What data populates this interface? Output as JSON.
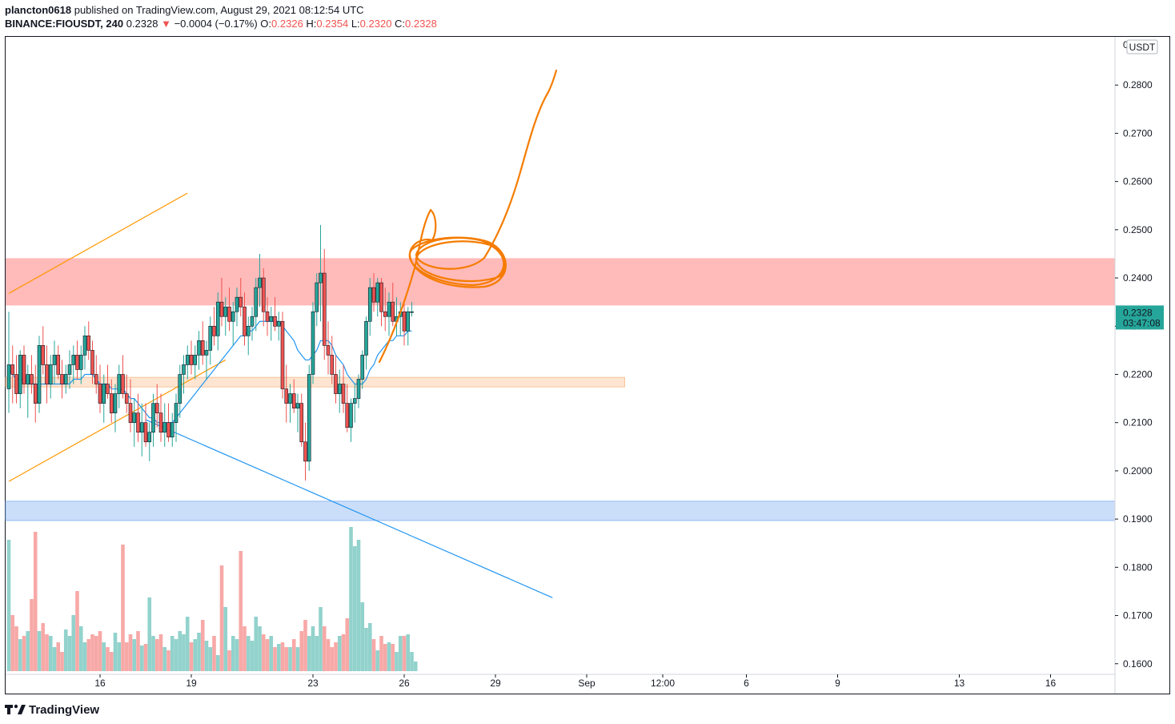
{
  "header": {
    "author": "plancton0618",
    "published": "published on TradingView.com, August 29, 2021 08:12:54 UTC",
    "symbol": "BINANCE:FIOUSDT, 240",
    "last": "0.2328",
    "change_arrow": "▼",
    "change": "−0.0004 (−0.17%)",
    "o_label": "O:",
    "o": "0.2326",
    "h_label": "H:",
    "h": "0.2354",
    "l_label": "L:",
    "l": "0.2320",
    "c_label": "C:",
    "c": "0.2328"
  },
  "footer": {
    "logo_text": "TradingView",
    "logo_icon": "tradingview-logo-icon"
  },
  "colors": {
    "up": "#26a69a",
    "down": "#ef5350",
    "sma": "#2196f3",
    "annotation": "#f57c00",
    "channel": "#ff9800",
    "resistance_zone": "#ff9c9c",
    "support_zone": "#fbd3b2",
    "blue_zone": "#a9c8f5"
  },
  "chart_data": {
    "type": "candlestick",
    "currency_label": "USDT",
    "price_axis": {
      "ticks": [
        "0.2800",
        "0.2700",
        "0.2600",
        "0.2500",
        "0.2400",
        "0.2300",
        "0.2200",
        "0.2100",
        "0.2000",
        "0.1900",
        "0.1800",
        "0.1700",
        "0.1600"
      ],
      "range": [
        0.1578,
        0.29
      ]
    },
    "last_price_label": {
      "price": "0.2328",
      "countdown": "03:47:08"
    },
    "time_axis": {
      "labels": [
        "16",
        "19",
        "23",
        "26",
        "29",
        "Sep",
        "12:00",
        "6",
        "9",
        "13",
        "16"
      ],
      "label_bar_index": [
        24,
        48,
        80,
        104,
        128,
        152,
        172,
        194,
        218,
        250,
        274
      ]
    },
    "candles_ohlc": [
      [
        0.217,
        0.233,
        0.212,
        0.222
      ],
      [
        0.222,
        0.226,
        0.214,
        0.22
      ],
      [
        0.22,
        0.224,
        0.214,
        0.216
      ],
      [
        0.216,
        0.225,
        0.213,
        0.224
      ],
      [
        0.224,
        0.226,
        0.216,
        0.218
      ],
      [
        0.218,
        0.222,
        0.211,
        0.22
      ],
      [
        0.22,
        0.224,
        0.216,
        0.218
      ],
      [
        0.218,
        0.222,
        0.21,
        0.214
      ],
      [
        0.214,
        0.228,
        0.212,
        0.226
      ],
      [
        0.226,
        0.23,
        0.22,
        0.222
      ],
      [
        0.222,
        0.226,
        0.214,
        0.218
      ],
      [
        0.218,
        0.224,
        0.215,
        0.222
      ],
      [
        0.222,
        0.227,
        0.218,
        0.224
      ],
      [
        0.224,
        0.226,
        0.219,
        0.22
      ],
      [
        0.22,
        0.223,
        0.215,
        0.218
      ],
      [
        0.218,
        0.222,
        0.216,
        0.22
      ],
      [
        0.22,
        0.225,
        0.217,
        0.222
      ],
      [
        0.222,
        0.226,
        0.218,
        0.224
      ],
      [
        0.224,
        0.227,
        0.219,
        0.221
      ],
      [
        0.221,
        0.226,
        0.218,
        0.224
      ],
      [
        0.224,
        0.23,
        0.221,
        0.228
      ],
      [
        0.228,
        0.231,
        0.223,
        0.225
      ],
      [
        0.225,
        0.227,
        0.218,
        0.22
      ],
      [
        0.22,
        0.224,
        0.216,
        0.218
      ],
      [
        0.218,
        0.222,
        0.212,
        0.214
      ],
      [
        0.214,
        0.22,
        0.21,
        0.218
      ],
      [
        0.218,
        0.222,
        0.215,
        0.216
      ],
      [
        0.216,
        0.219,
        0.21,
        0.212
      ],
      [
        0.212,
        0.218,
        0.208,
        0.216
      ],
      [
        0.216,
        0.222,
        0.213,
        0.22
      ],
      [
        0.22,
        0.224,
        0.215,
        0.216
      ],
      [
        0.216,
        0.22,
        0.212,
        0.214
      ],
      [
        0.214,
        0.219,
        0.208,
        0.21
      ],
      [
        0.21,
        0.215,
        0.205,
        0.212
      ],
      [
        0.212,
        0.216,
        0.206,
        0.208
      ],
      [
        0.208,
        0.214,
        0.203,
        0.21
      ],
      [
        0.21,
        0.214,
        0.205,
        0.206
      ],
      [
        0.206,
        0.21,
        0.202,
        0.208
      ],
      [
        0.208,
        0.216,
        0.205,
        0.214
      ],
      [
        0.214,
        0.218,
        0.209,
        0.212
      ],
      [
        0.212,
        0.216,
        0.206,
        0.208
      ],
      [
        0.208,
        0.214,
        0.205,
        0.21
      ],
      [
        0.21,
        0.214,
        0.206,
        0.207
      ],
      [
        0.207,
        0.212,
        0.205,
        0.21
      ],
      [
        0.21,
        0.216,
        0.206,
        0.214
      ],
      [
        0.214,
        0.222,
        0.211,
        0.22
      ],
      [
        0.22,
        0.224,
        0.216,
        0.222
      ],
      [
        0.222,
        0.226,
        0.219,
        0.224
      ],
      [
        0.224,
        0.227,
        0.22,
        0.222
      ],
      [
        0.222,
        0.226,
        0.219,
        0.224
      ],
      [
        0.224,
        0.229,
        0.221,
        0.227
      ],
      [
        0.227,
        0.231,
        0.222,
        0.224
      ],
      [
        0.224,
        0.227,
        0.219,
        0.225
      ],
      [
        0.225,
        0.232,
        0.222,
        0.23
      ],
      [
        0.23,
        0.234,
        0.226,
        0.228
      ],
      [
        0.228,
        0.237,
        0.225,
        0.235
      ],
      [
        0.235,
        0.24,
        0.23,
        0.232
      ],
      [
        0.232,
        0.236,
        0.228,
        0.234
      ],
      [
        0.234,
        0.238,
        0.229,
        0.231
      ],
      [
        0.231,
        0.235,
        0.226,
        0.233
      ],
      [
        0.233,
        0.238,
        0.23,
        0.236
      ],
      [
        0.236,
        0.24,
        0.232,
        0.234
      ],
      [
        0.234,
        0.237,
        0.226,
        0.228
      ],
      [
        0.228,
        0.232,
        0.224,
        0.23
      ],
      [
        0.23,
        0.234,
        0.227,
        0.232
      ],
      [
        0.232,
        0.24,
        0.229,
        0.238
      ],
      [
        0.238,
        0.245,
        0.234,
        0.24
      ],
      [
        0.24,
        0.242,
        0.23,
        0.233
      ],
      [
        0.233,
        0.236,
        0.228,
        0.231
      ],
      [
        0.231,
        0.234,
        0.227,
        0.232
      ],
      [
        0.232,
        0.236,
        0.229,
        0.23
      ],
      [
        0.23,
        0.233,
        0.227,
        0.231
      ],
      [
        0.231,
        0.233,
        0.215,
        0.217
      ],
      [
        0.217,
        0.222,
        0.21,
        0.214
      ],
      [
        0.214,
        0.218,
        0.21,
        0.216
      ],
      [
        0.216,
        0.219,
        0.212,
        0.213
      ],
      [
        0.213,
        0.216,
        0.208,
        0.214
      ],
      [
        0.214,
        0.216,
        0.205,
        0.206
      ],
      [
        0.206,
        0.21,
        0.198,
        0.202
      ],
      [
        0.202,
        0.222,
        0.2,
        0.22
      ],
      [
        0.22,
        0.235,
        0.218,
        0.233
      ],
      [
        0.233,
        0.241,
        0.23,
        0.239
      ],
      [
        0.239,
        0.251,
        0.231,
        0.241
      ],
      [
        0.241,
        0.246,
        0.223,
        0.226
      ],
      [
        0.226,
        0.231,
        0.22,
        0.224
      ],
      [
        0.224,
        0.228,
        0.218,
        0.22
      ],
      [
        0.22,
        0.224,
        0.214,
        0.216
      ],
      [
        0.216,
        0.221,
        0.212,
        0.218
      ],
      [
        0.218,
        0.222,
        0.212,
        0.214
      ],
      [
        0.214,
        0.218,
        0.208,
        0.209
      ],
      [
        0.209,
        0.215,
        0.206,
        0.214
      ],
      [
        0.214,
        0.218,
        0.21,
        0.215
      ],
      [
        0.215,
        0.22,
        0.213,
        0.219
      ],
      [
        0.219,
        0.225,
        0.217,
        0.224
      ],
      [
        0.224,
        0.232,
        0.221,
        0.231
      ],
      [
        0.231,
        0.24,
        0.228,
        0.238
      ],
      [
        0.238,
        0.241,
        0.233,
        0.235
      ],
      [
        0.235,
        0.24,
        0.232,
        0.239
      ],
      [
        0.239,
        0.24,
        0.23,
        0.233
      ],
      [
        0.233,
        0.238,
        0.229,
        0.232
      ],
      [
        0.232,
        0.237,
        0.228,
        0.235
      ],
      [
        0.235,
        0.239,
        0.23,
        0.231
      ],
      [
        0.231,
        0.236,
        0.228,
        0.232
      ],
      [
        0.232,
        0.235,
        0.228,
        0.233
      ],
      [
        0.233,
        0.235,
        0.226,
        0.229
      ],
      [
        0.229,
        0.234,
        0.226,
        0.233
      ],
      [
        0.233,
        0.235,
        0.232,
        0.233
      ]
    ],
    "sma": [
      0.221,
      0.22,
      0.219,
      0.219,
      0.219,
      0.218,
      0.218,
      0.218,
      0.218,
      0.218,
      0.218,
      0.218,
      0.218,
      0.218,
      0.218,
      0.218,
      0.218,
      0.219,
      0.219,
      0.219,
      0.22,
      0.22,
      0.22,
      0.219,
      0.218,
      0.218,
      0.218,
      0.217,
      0.217,
      0.217,
      0.217,
      0.216,
      0.215,
      0.215,
      0.214,
      0.213,
      0.212,
      0.211,
      0.211,
      0.21,
      0.21,
      0.21,
      0.21,
      0.21,
      0.211,
      0.212,
      0.213,
      0.214,
      0.215,
      0.216,
      0.217,
      0.218,
      0.219,
      0.22,
      0.221,
      0.222,
      0.223,
      0.224,
      0.225,
      0.226,
      0.227,
      0.228,
      0.228,
      0.229,
      0.229,
      0.23,
      0.231,
      0.231,
      0.231,
      0.231,
      0.231,
      0.231,
      0.23,
      0.229,
      0.228,
      0.227,
      0.225,
      0.224,
      0.223,
      0.223,
      0.224,
      0.225,
      0.227,
      0.227,
      0.227,
      0.226,
      0.224,
      0.223,
      0.222,
      0.22,
      0.219,
      0.218,
      0.218,
      0.218,
      0.219,
      0.221,
      0.222,
      0.224,
      0.225,
      0.226,
      0.227,
      0.227,
      0.228,
      0.228,
      0.228,
      0.229,
      0.229
    ],
    "volume_relative": [
      0.82,
      0.35,
      0.28,
      0.2,
      0.22,
      0.25,
      0.45,
      0.87,
      0.25,
      0.3,
      0.23,
      0.22,
      0.15,
      0.18,
      0.12,
      0.26,
      0.22,
      0.35,
      0.5,
      0.28,
      0.18,
      0.2,
      0.23,
      0.22,
      0.25,
      0.18,
      0.15,
      0.12,
      0.24,
      0.18,
      0.79,
      0.18,
      0.23,
      0.2,
      0.25,
      0.16,
      0.17,
      0.46,
      0.22,
      0.2,
      0.23,
      0.15,
      0.13,
      0.22,
      0.2,
      0.25,
      0.23,
      0.34,
      0.18,
      0.2,
      0.24,
      0.32,
      0.19,
      0.15,
      0.22,
      0.1,
      0.66,
      0.4,
      0.13,
      0.22,
      0.2,
      0.75,
      0.28,
      0.22,
      0.19,
      0.34,
      0.28,
      0.23,
      0.2,
      0.22,
      0.15,
      0.17,
      0.18,
      0.15,
      0.15,
      0.2,
      0.15,
      0.25,
      0.32,
      0.22,
      0.28,
      0.22,
      0.4,
      0.28,
      0.2,
      0.15,
      0.18,
      0.22,
      0.23,
      0.33,
      0.9,
      0.78,
      0.82,
      0.43,
      0.27,
      0.3,
      0.2,
      0.13,
      0.22,
      0.17,
      0.18,
      0.17,
      0.12,
      0.22,
      0.22,
      0.23,
      0.12,
      0.06
    ],
    "zones": [
      {
        "name": "resistance",
        "from": 0.2343,
        "to": 0.2441,
        "x_end": "right-edge"
      },
      {
        "name": "support",
        "from": 0.2174,
        "to": 0.2194,
        "x_end_bar": 162
      },
      {
        "name": "blue-support",
        "from": 0.1897,
        "to": 0.1937,
        "x_end": "right-edge"
      }
    ],
    "trendlines": [
      {
        "name": "channel-top",
        "from": [
          0,
          0.2368
        ],
        "to": [
          47,
          0.2576
        ],
        "color": "orange"
      },
      {
        "name": "channel-bottom",
        "from": [
          0,
          0.1978
        ],
        "to": [
          57,
          0.223
        ],
        "color": "orange"
      },
      {
        "name": "descending",
        "from": [
          36,
          0.2106
        ],
        "to": [
          143,
          0.1737
        ],
        "color": "blue"
      }
    ],
    "drawing": "orange-freehand-projection"
  }
}
